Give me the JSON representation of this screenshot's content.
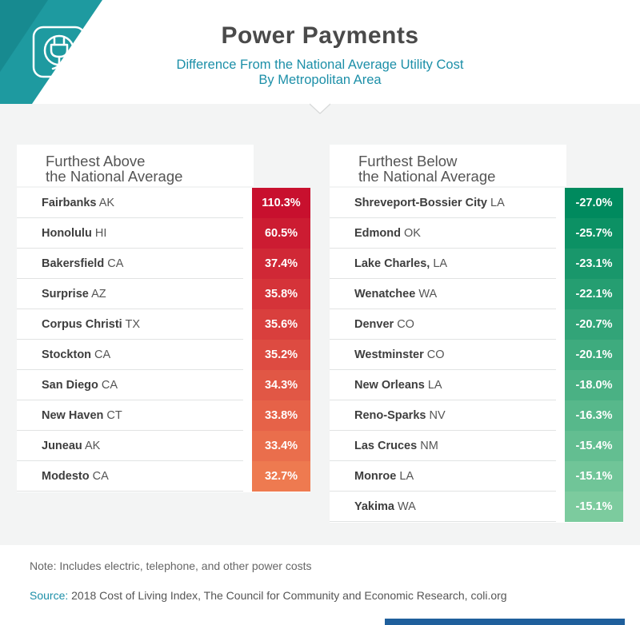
{
  "header": {
    "title": "Power Payments",
    "subtitle_line1": "Difference From the National Average Utility Cost",
    "subtitle_line2": "By Metropolitan Area",
    "icon": "plug-icon"
  },
  "colors": {
    "teal": "#1e9aa0",
    "subtitle": "#1c8fa8",
    "above_high": "#c8102e",
    "above_low": "#ee7a50",
    "below_high": "#008a5e",
    "below_low": "#7ccb9e"
  },
  "chart_data": [
    {
      "type": "table",
      "title": "Furthest Above the National Average",
      "title_line1": "Furthest Above",
      "title_line2": "the National Average",
      "rows": [
        {
          "city": "Fairbanks",
          "state": "AK",
          "value": 110.3,
          "label": "110.3%"
        },
        {
          "city": "Honolulu",
          "state": "HI",
          "value": 60.5,
          "label": "60.5%"
        },
        {
          "city": "Bakersfield",
          "state": "CA",
          "value": 37.4,
          "label": "37.4%"
        },
        {
          "city": "Surprise",
          "state": "AZ",
          "value": 35.8,
          "label": "35.8%"
        },
        {
          "city": "Corpus Christi",
          "state": "TX",
          "value": 35.6,
          "label": "35.6%"
        },
        {
          "city": "Stockton",
          "state": "CA",
          "value": 35.2,
          "label": "35.2%"
        },
        {
          "city": "San Diego",
          "state": "CA",
          "value": 34.3,
          "label": "34.3%"
        },
        {
          "city": "New Haven",
          "state": "CT",
          "value": 33.8,
          "label": "33.8%"
        },
        {
          "city": "Juneau",
          "state": "AK",
          "value": 33.4,
          "label": "33.4%"
        },
        {
          "city": "Modesto",
          "state": "CA",
          "value": 32.7,
          "label": "32.7%"
        }
      ]
    },
    {
      "type": "table",
      "title": "Furthest Below the National Average",
      "title_line1": "Furthest Below",
      "title_line2": "the National Average",
      "rows": [
        {
          "city": "Shreveport-Bossier City",
          "state": "LA",
          "value": -27.0,
          "label": "-27.0%"
        },
        {
          "city": "Edmond",
          "state": "OK",
          "value": -25.7,
          "label": "-25.7%"
        },
        {
          "city": "Lake Charles,",
          "state": "LA",
          "value": -23.1,
          "label": "-23.1%"
        },
        {
          "city": "Wenatchee",
          "state": "WA",
          "value": -22.1,
          "label": "-22.1%"
        },
        {
          "city": "Denver",
          "state": "CO",
          "value": -20.7,
          "label": "-20.7%"
        },
        {
          "city": "Westminster",
          "state": "CO",
          "value": -20.1,
          "label": "-20.1%"
        },
        {
          "city": "New Orleans",
          "state": "LA",
          "value": -18.0,
          "label": "-18.0%"
        },
        {
          "city": "Reno-Sparks",
          "state": "NV",
          "value": -16.3,
          "label": "-16.3%"
        },
        {
          "city": "Las Cruces",
          "state": "NM",
          "value": -15.4,
          "label": "-15.4%"
        },
        {
          "city": "Monroe",
          "state": "LA",
          "value": -15.1,
          "label": "-15.1%"
        },
        {
          "city": "Yakima",
          "state": "WA",
          "value": -15.1,
          "label": "-15.1%"
        }
      ]
    }
  ],
  "footer": {
    "note": "Note: Includes electric, telephone, and other power costs",
    "source_label": "Source:",
    "source_text": " 2018 Cost of Living Index, The Council for Community and Economic Research, coli.org"
  }
}
